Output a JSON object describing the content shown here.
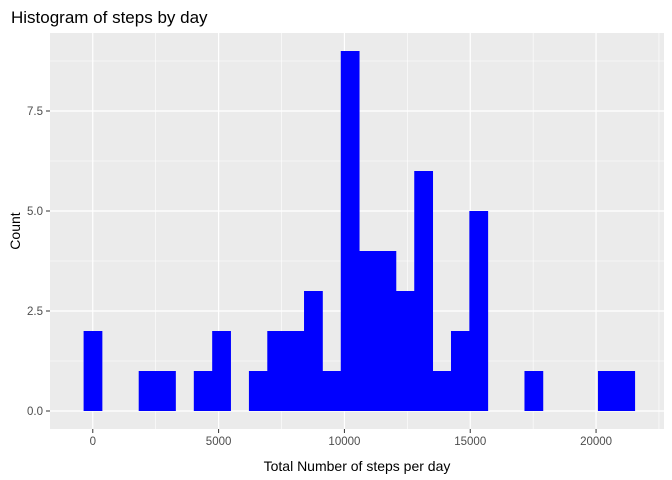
{
  "chart_data": {
    "type": "bar",
    "title": "Histogram of steps by day",
    "xlabel": "Total Number of steps per day",
    "ylabel": "Count",
    "xlim": [
      -1700,
      22700
    ],
    "ylim": [
      -0.45,
      9.45
    ],
    "x_ticks": [
      0,
      5000,
      10000,
      15000,
      20000
    ],
    "x_tick_labels": [
      "0",
      "5000",
      "10000",
      "15000",
      "20000"
    ],
    "y_ticks": [
      0,
      2.5,
      5,
      7.5
    ],
    "y_tick_labels": [
      "0.0",
      "2.5",
      "5.0",
      "7.5"
    ],
    "bin_width": 730,
    "bins": [
      {
        "center": 0,
        "count": 2
      },
      {
        "center": 730,
        "count": 0
      },
      {
        "center": 1460,
        "count": 0
      },
      {
        "center": 2190,
        "count": 1
      },
      {
        "center": 2920,
        "count": 1
      },
      {
        "center": 3650,
        "count": 0
      },
      {
        "center": 4380,
        "count": 1
      },
      {
        "center": 5110,
        "count": 2
      },
      {
        "center": 5840,
        "count": 0
      },
      {
        "center": 6570,
        "count": 1
      },
      {
        "center": 7300,
        "count": 2
      },
      {
        "center": 8030,
        "count": 2
      },
      {
        "center": 8760,
        "count": 3
      },
      {
        "center": 9490,
        "count": 1
      },
      {
        "center": 10220,
        "count": 9
      },
      {
        "center": 10950,
        "count": 4
      },
      {
        "center": 11680,
        "count": 4
      },
      {
        "center": 12410,
        "count": 3
      },
      {
        "center": 13140,
        "count": 6
      },
      {
        "center": 13870,
        "count": 1
      },
      {
        "center": 14600,
        "count": 2
      },
      {
        "center": 15330,
        "count": 5
      },
      {
        "center": 16060,
        "count": 0
      },
      {
        "center": 16790,
        "count": 0
      },
      {
        "center": 17520,
        "count": 1
      },
      {
        "center": 18250,
        "count": 0
      },
      {
        "center": 18980,
        "count": 0
      },
      {
        "center": 19710,
        "count": 0
      },
      {
        "center": 20440,
        "count": 1
      },
      {
        "center": 21170,
        "count": 1
      }
    ],
    "bar_color": "#0000ff",
    "panel_background": "#ebebeb",
    "grid_color": "#ffffff",
    "grid": true,
    "legend": "none"
  }
}
